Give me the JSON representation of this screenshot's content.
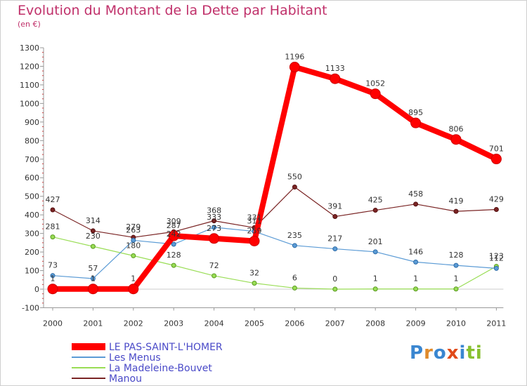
{
  "chart_data": {
    "type": "line",
    "title": "Evolution du Montant de la Dette par Habitant",
    "subtitle": "(en €)",
    "xlabel": "",
    "ylabel": "",
    "ylim": [
      -100,
      1300
    ],
    "yticks": [
      -100,
      0,
      100,
      200,
      300,
      400,
      500,
      600,
      700,
      800,
      900,
      1000,
      1100,
      1200,
      1300
    ],
    "categories": [
      "2000",
      "2001",
      "2002",
      "2003",
      "2004",
      "2005",
      "2006",
      "2007",
      "2008",
      "2009",
      "2010",
      "2011"
    ],
    "grid": false,
    "legend_position": "bottom-left",
    "series": [
      {
        "name": "LE PAS-SAINT-L'HOMER",
        "color": "#ff0000",
        "values": [
          1,
          1,
          1,
          287,
          273,
          259,
          1196,
          1133,
          1052,
          895,
          806,
          701
        ],
        "labels": [
          "1",
          "1",
          "1",
          "287",
          "273",
          "259",
          "1196",
          "1133",
          "1052",
          "895",
          "806",
          "701"
        ]
      },
      {
        "name": "Les Menus",
        "color": "#5b9bd5",
        "values": [
          73,
          57,
          263,
          242,
          333,
          311,
          235,
          217,
          201,
          146,
          128,
          112
        ],
        "labels": [
          "73",
          "57",
          "263",
          "242",
          "333",
          "311",
          "235",
          "217",
          "201",
          "146",
          "128",
          "112"
        ]
      },
      {
        "name": "La Madeleine-Bouvet",
        "color": "#99dd55",
        "values": [
          281,
          230,
          180,
          128,
          72,
          32,
          6,
          0,
          1,
          1,
          1,
          123
        ],
        "labels": [
          "281",
          "230",
          "180",
          "128",
          "72",
          "32",
          "6",
          "0",
          "1",
          "1",
          "1",
          "123"
        ]
      },
      {
        "name": "Manou",
        "color": "#7a2424",
        "values": [
          427,
          314,
          279,
          309,
          368,
          331,
          550,
          391,
          425,
          458,
          419,
          429
        ],
        "labels": [
          "427",
          "314",
          "279",
          "309",
          "368",
          "331",
          "550",
          "391",
          "425",
          "458",
          "419",
          "429"
        ]
      }
    ]
  },
  "logo": {
    "text": "Proxiti",
    "letters": [
      "P",
      "r",
      "o",
      "x",
      "i",
      "t",
      "i"
    ],
    "colors": [
      "#3a86d0",
      "#e08a2a",
      "#3a86d0",
      "#e04a1a",
      "#3a86d0",
      "#88c030",
      "#88c030"
    ]
  }
}
